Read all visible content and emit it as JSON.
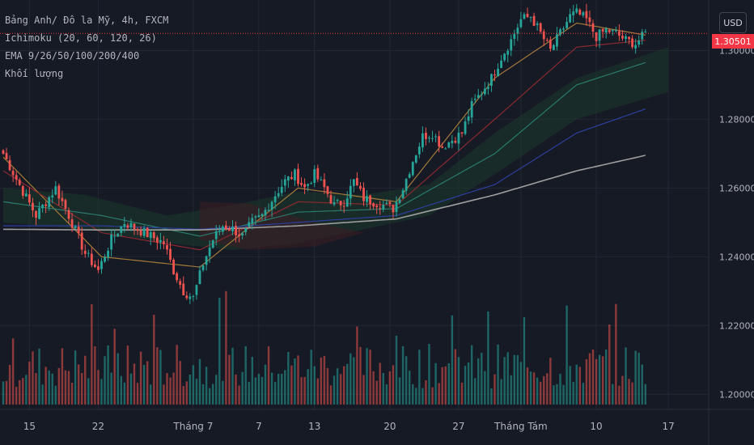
{
  "legend": {
    "symbol": "Bảng Anh/ Đô la Mỹ, 4h, FXCM",
    "ichimoku": "Ichimoku (20, 60, 120, 26)",
    "ema": "EMA 9/26/50/100/200/400",
    "volume": "Khối lượng"
  },
  "currency_button": "USD",
  "last_price": "1.30501",
  "colors": {
    "background": "#161a25",
    "up": "#26a69a",
    "down": "#ef5350",
    "grid": "#232733",
    "price_line": "#f23645",
    "ema9": "#a3793a",
    "ema26": "#8a2a2f",
    "ema50": "#2a7a6e",
    "ema100": "#2c3f9e",
    "ema200": "#9e9e9e",
    "cloud": "#1d3a2c"
  },
  "chart_data": {
    "type": "candlestick",
    "title": "Bảng Anh/ Đô la Mỹ, 4h, FXCM",
    "y_axis": {
      "ticks": [
        "1.30000",
        "1.28000",
        "1.26000",
        "1.24000",
        "1.22000",
        "1.20000"
      ],
      "range": [
        1.197,
        1.314
      ]
    },
    "x_axis": {
      "ticks": [
        "15",
        "22",
        "Tháng 7",
        "7",
        "13",
        "20",
        "27",
        "Tháng Tám",
        "10",
        "17"
      ]
    },
    "grid": true,
    "close_anchors": [
      [
        0,
        1.27
      ],
      [
        6,
        1.259
      ],
      [
        10,
        1.252
      ],
      [
        16,
        1.26
      ],
      [
        20,
        1.252
      ],
      [
        25,
        1.241
      ],
      [
        29,
        1.236
      ],
      [
        33,
        1.245
      ],
      [
        37,
        1.25
      ],
      [
        41,
        1.248
      ],
      [
        45,
        1.246
      ],
      [
        49,
        1.244
      ],
      [
        52,
        1.236
      ],
      [
        55,
        1.23
      ],
      [
        58,
        1.228
      ],
      [
        61,
        1.238
      ],
      [
        64,
        1.245
      ],
      [
        67,
        1.249
      ],
      [
        70,
        1.248
      ],
      [
        73,
        1.246
      ],
      [
        76,
        1.25
      ],
      [
        79,
        1.252
      ],
      [
        83,
        1.258
      ],
      [
        86,
        1.262
      ],
      [
        89,
        1.264
      ],
      [
        92,
        1.26
      ],
      [
        95,
        1.264
      ],
      [
        98,
        1.26
      ],
      [
        101,
        1.255
      ],
      [
        104,
        1.256
      ],
      [
        107,
        1.262
      ],
      [
        110,
        1.257
      ],
      [
        113,
        1.256
      ],
      [
        116,
        1.255
      ],
      [
        119,
        1.254
      ],
      [
        122,
        1.26
      ],
      [
        125,
        1.268
      ],
      [
        128,
        1.275
      ],
      [
        131,
        1.276
      ],
      [
        134,
        1.272
      ],
      [
        137,
        1.274
      ],
      [
        140,
        1.276
      ],
      [
        143,
        1.284
      ],
      [
        146,
        1.288
      ],
      [
        149,
        1.292
      ],
      [
        152,
        1.298
      ],
      [
        155,
        1.303
      ],
      [
        158,
        1.309
      ],
      [
        161,
        1.31
      ],
      [
        164,
        1.305
      ],
      [
        167,
        1.3
      ],
      [
        170,
        1.305
      ],
      [
        173,
        1.31
      ],
      [
        175,
        1.311
      ],
      [
        178,
        1.309
      ],
      [
        181,
        1.304
      ],
      [
        184,
        1.306
      ],
      [
        187,
        1.305
      ],
      [
        190,
        1.303
      ],
      [
        193,
        1.302
      ],
      [
        196,
        1.305
      ]
    ],
    "ema_series": [
      {
        "key": "ema9",
        "points": [
          [
            0,
            1.269
          ],
          [
            30,
            1.24
          ],
          [
            60,
            1.237
          ],
          [
            90,
            1.26
          ],
          [
            120,
            1.256
          ],
          [
            150,
            1.292
          ],
          [
            175,
            1.308
          ],
          [
            196,
            1.3045
          ]
        ]
      },
      {
        "key": "ema26",
        "points": [
          [
            0,
            1.265
          ],
          [
            30,
            1.247
          ],
          [
            60,
            1.242
          ],
          [
            90,
            1.256
          ],
          [
            120,
            1.255
          ],
          [
            150,
            1.28
          ],
          [
            175,
            1.301
          ],
          [
            196,
            1.303
          ]
        ]
      },
      {
        "key": "ema50",
        "points": [
          [
            0,
            1.256
          ],
          [
            30,
            1.252
          ],
          [
            60,
            1.246
          ],
          [
            90,
            1.253
          ],
          [
            120,
            1.254
          ],
          [
            150,
            1.27
          ],
          [
            175,
            1.29
          ],
          [
            196,
            1.2965
          ]
        ]
      },
      {
        "key": "ema100",
        "points": [
          [
            0,
            1.249
          ],
          [
            30,
            1.249
          ],
          [
            60,
            1.248
          ],
          [
            90,
            1.25
          ],
          [
            120,
            1.252
          ],
          [
            150,
            1.261
          ],
          [
            175,
            1.276
          ],
          [
            196,
            1.283
          ]
        ]
      },
      {
        "key": "ema200",
        "points": [
          [
            0,
            1.248
          ],
          [
            30,
            1.2478
          ],
          [
            60,
            1.2478
          ],
          [
            90,
            1.249
          ],
          [
            120,
            1.251
          ],
          [
            150,
            1.258
          ],
          [
            175,
            1.265
          ],
          [
            196,
            1.2695
          ]
        ]
      }
    ],
    "cloud": {
      "top": [
        [
          0,
          1.26
        ],
        [
          25,
          1.258
        ],
        [
          50,
          1.252
        ],
        [
          70,
          1.255
        ],
        [
          90,
          1.259
        ],
        [
          110,
          1.258
        ],
        [
          130,
          1.261
        ],
        [
          150,
          1.276
        ],
        [
          175,
          1.292
        ],
        [
          203,
          1.301
        ]
      ],
      "bottom": [
        [
          0,
          1.25
        ],
        [
          25,
          1.248
        ],
        [
          50,
          1.244
        ],
        [
          70,
          1.242
        ],
        [
          90,
          1.244
        ],
        [
          110,
          1.248
        ],
        [
          130,
          1.252
        ],
        [
          150,
          1.264
        ],
        [
          175,
          1.28
        ],
        [
          203,
          1.288
        ]
      ]
    },
    "last_price": 1.30501,
    "candle_count": 197
  }
}
